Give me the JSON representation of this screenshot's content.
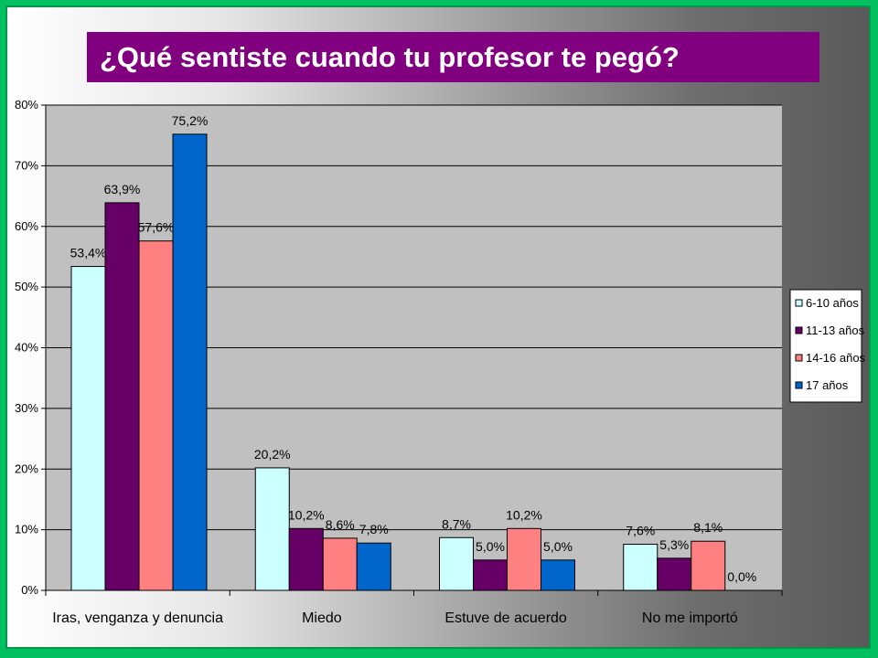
{
  "title": "¿Qué sentiste cuando tu profesor te pegó?",
  "chart_data": {
    "type": "bar",
    "categories": [
      "Iras, venganza y denuncia",
      "Miedo",
      "Estuve de acuerdo",
      "No me importó"
    ],
    "series": [
      {
        "name": "6-10 años",
        "color": "#ccffff",
        "values": [
          53.4,
          20.2,
          8.7,
          7.6
        ]
      },
      {
        "name": "11-13 años",
        "color": "#660066",
        "values": [
          63.9,
          10.2,
          5.0,
          5.3
        ]
      },
      {
        "name": "14-16 años",
        "color": "#ff8080",
        "values": [
          57.6,
          8.6,
          10.2,
          8.1
        ]
      },
      {
        "name": "17 años",
        "color": "#0066cc",
        "values": [
          75.2,
          7.8,
          5.0,
          0.0
        ]
      }
    ],
    "data_labels": [
      [
        "53,4%",
        "20,2%",
        "8,7%",
        "7,6%"
      ],
      [
        "63,9%",
        "10,2%",
        "5,0%",
        "5,3%"
      ],
      [
        "57,6%",
        "8,6%",
        "10,2%",
        "8,1%"
      ],
      [
        "75,2%",
        "7,8%",
        "5,0%",
        "0,0%"
      ]
    ],
    "y_ticks": [
      "0%",
      "10%",
      "20%",
      "30%",
      "40%",
      "50%",
      "60%",
      "70%",
      "80%"
    ],
    "ylim": [
      0,
      80
    ],
    "grid": true,
    "legend_position": "right",
    "plot_background": "#c0c0c0"
  }
}
